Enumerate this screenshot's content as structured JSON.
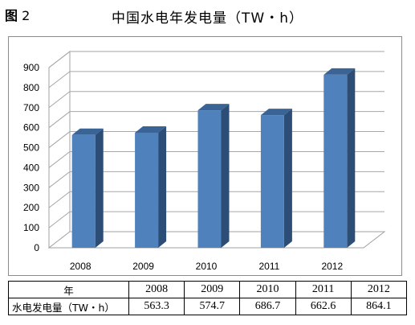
{
  "figure_label": {
    "prefix": "图",
    "number": "2"
  },
  "chart_data": {
    "type": "bar",
    "title": "中国水电年发电量（TW・h）",
    "categories": [
      "2008",
      "2009",
      "2010",
      "2011",
      "2012"
    ],
    "series": [
      {
        "values": [
          563.3,
          574.7,
          686.7,
          662.6,
          864.1
        ]
      }
    ],
    "yticks": [
      "0",
      "100",
      "200",
      "300",
      "400",
      "500",
      "600",
      "700",
      "800",
      "900"
    ],
    "ylim": [
      0,
      900
    ],
    "grid": true,
    "style": "3d-column",
    "bar_color": "#4f81bd"
  },
  "table": {
    "header_label": "年",
    "row_label": "水电发电量（TW・h）",
    "years": [
      "2008",
      "2009",
      "2010",
      "2011",
      "2012"
    ],
    "values": [
      "563.3",
      "574.7",
      "686.7",
      "662.6",
      "864.1"
    ]
  }
}
